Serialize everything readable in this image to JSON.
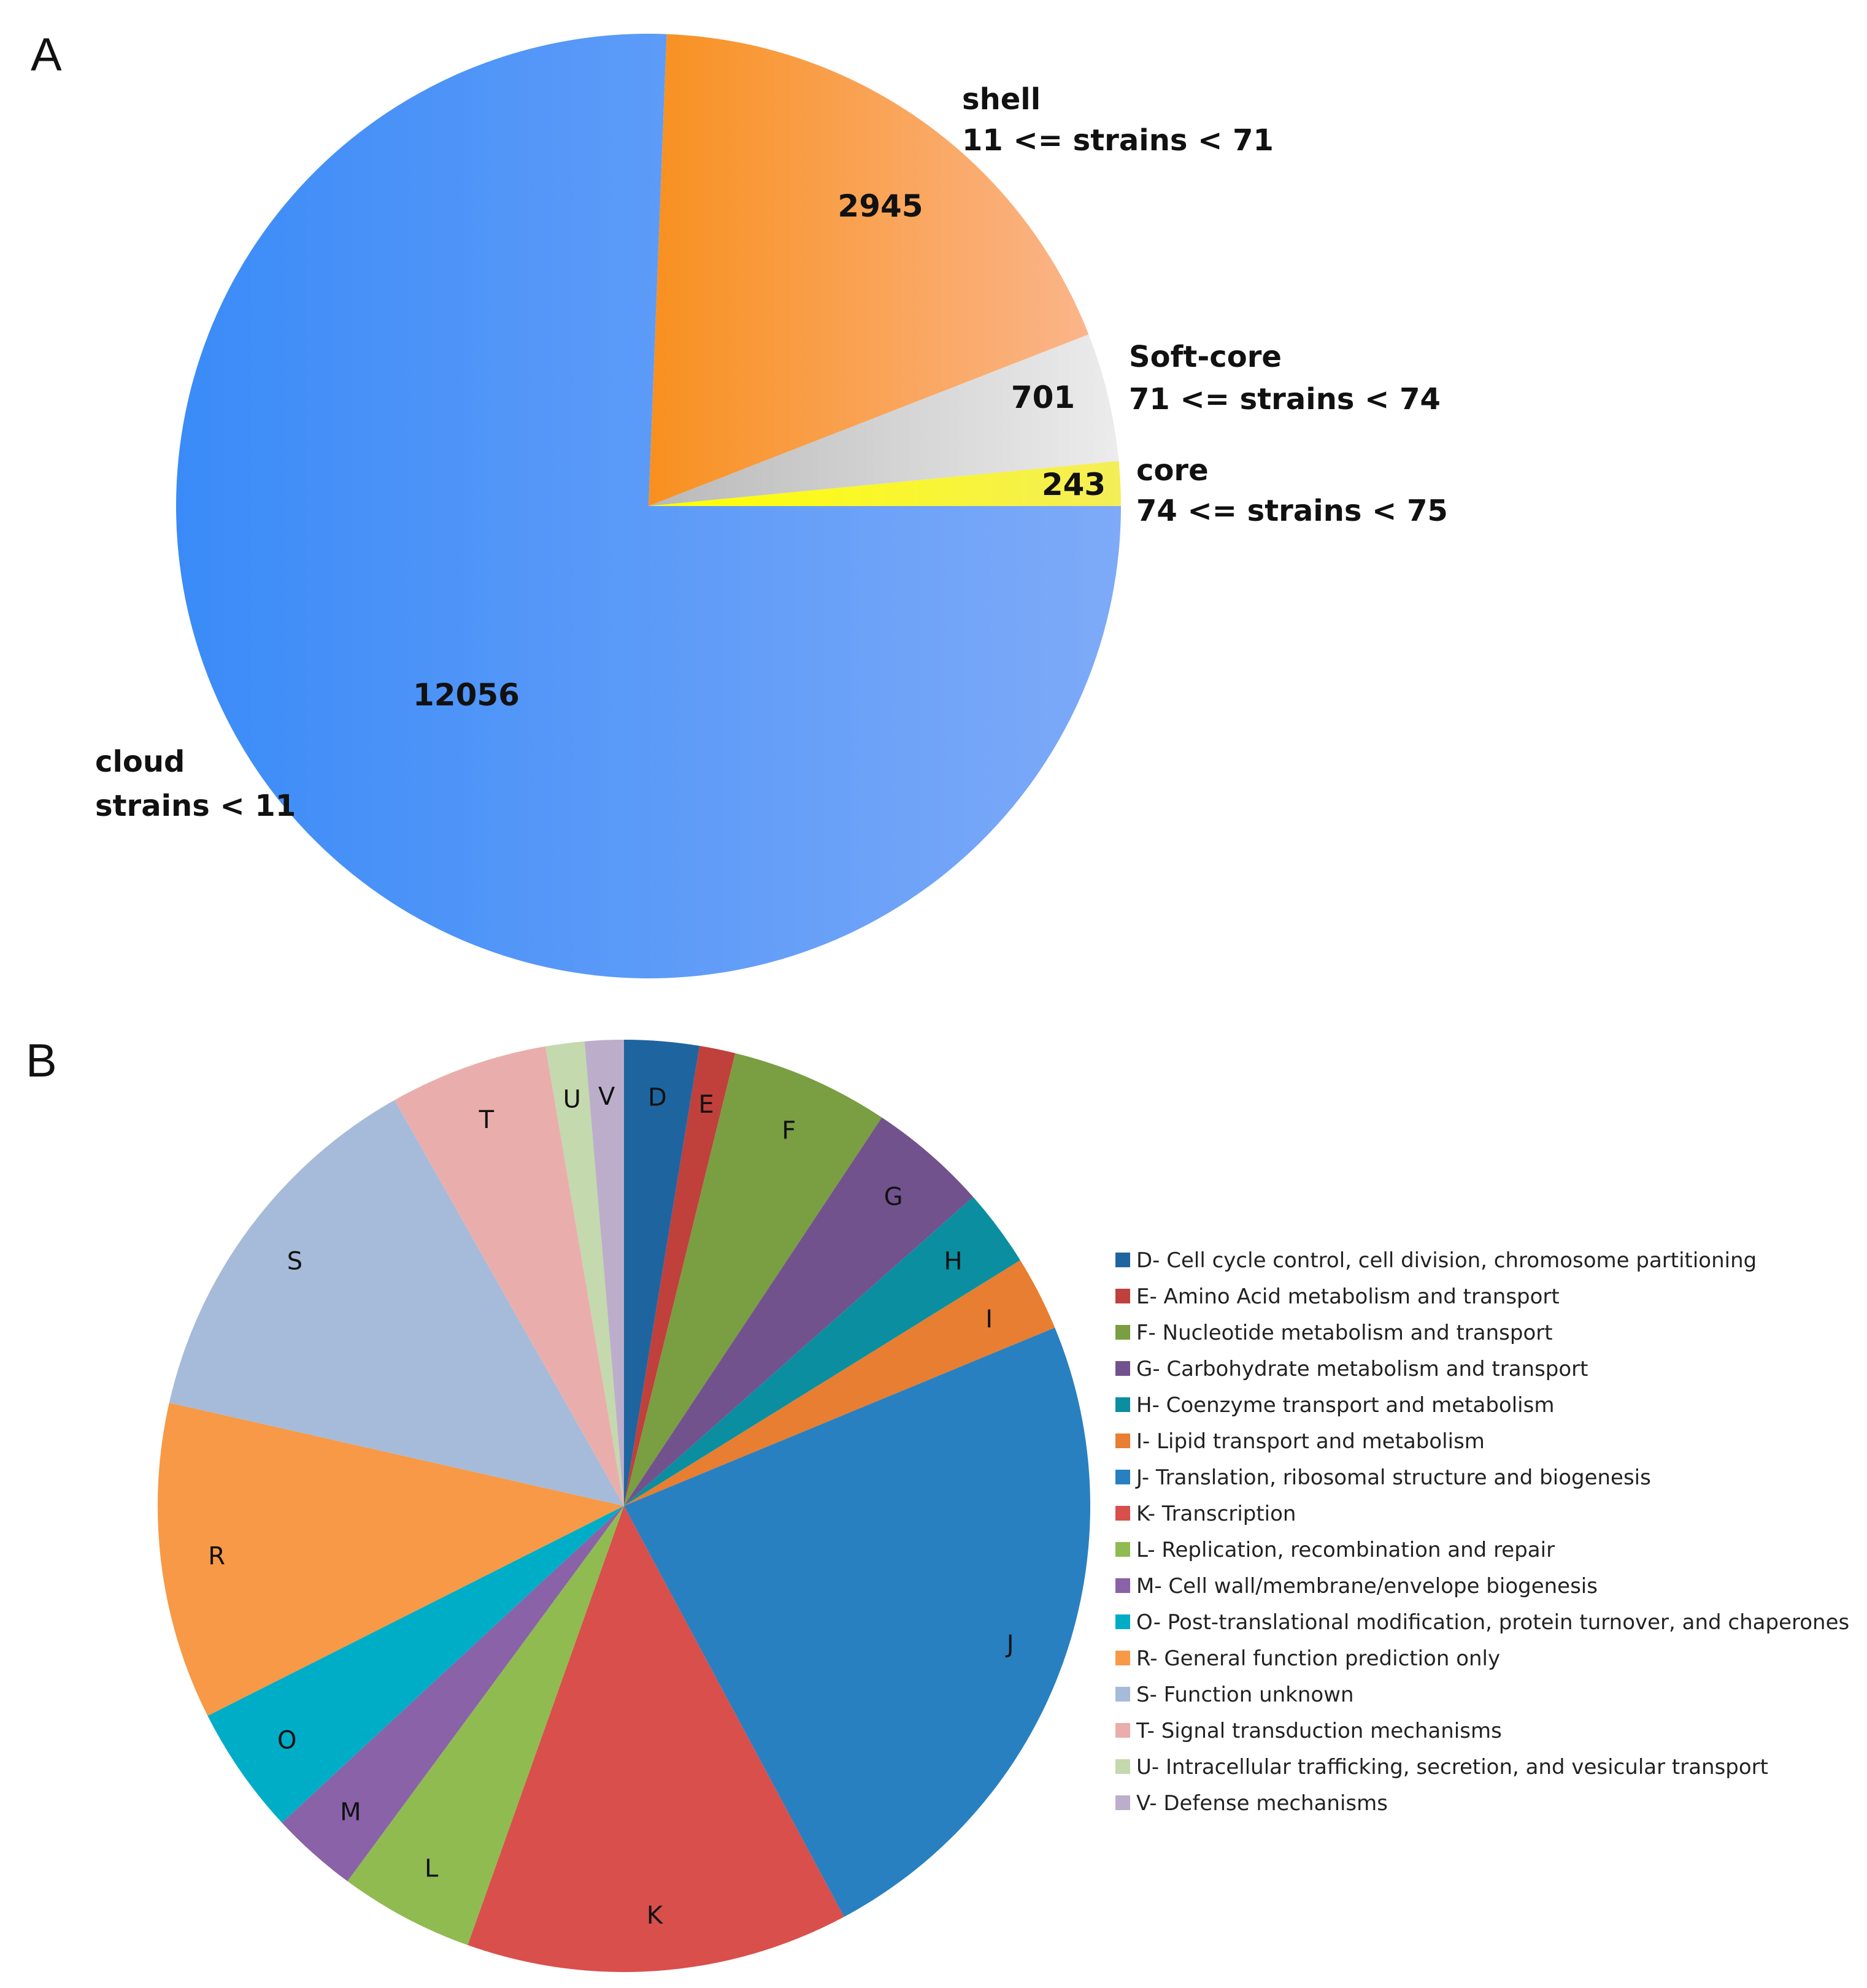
{
  "panels": {
    "a": {
      "letter": "A"
    },
    "b": {
      "letter": "B"
    }
  },
  "chart_data": [
    {
      "type": "pie",
      "title": "",
      "slices": [
        {
          "name": "cloud",
          "range": "strains < 11",
          "value": 12056,
          "value_label": "12056",
          "color": "#3f8ff8",
          "color_end": "#7aaaf8"
        },
        {
          "name": "shell",
          "range": "11 <= strains < 71",
          "value": 2945,
          "value_label": "2945",
          "color": "#f8942a",
          "color_end": "#fbb484"
        },
        {
          "name": "Soft-core",
          "range": "71 <=  strains < 74",
          "value": 701,
          "value_label": "701",
          "color": "#cfcfcf",
          "color_end": "#e6e6e6"
        },
        {
          "name": "core",
          "range": "74 <=  strains < 75",
          "value": 243,
          "value_label": "243",
          "color": "#ffff00",
          "color_end": "#f8f060"
        }
      ]
    },
    {
      "type": "pie",
      "title": "",
      "legend_position": "right",
      "slices": [
        {
          "letter": "D",
          "label": "D- Cell cycle control, cell division, chromosome partitioning",
          "value": 2.5,
          "color": "#1e65a0"
        },
        {
          "letter": "E",
          "label": "E- Amino Acid metabolism and transport",
          "value": 1.2,
          "color": "#c0403c"
        },
        {
          "letter": "F",
          "label": "F- Nucleotide metabolism and transport",
          "value": 5.3,
          "color": "#7a9e42"
        },
        {
          "letter": "G",
          "label": "G- Carbohydrate metabolism and transport",
          "value": 4.0,
          "color": "#72528d"
        },
        {
          "letter": "H",
          "label": "H- Coenzyme transport and metabolism",
          "value": 2.6,
          "color": "#0b8fa0"
        },
        {
          "letter": "I",
          "label": "I- Lipid transport and metabolism",
          "value": 2.5,
          "color": "#e77e31"
        },
        {
          "letter": "J",
          "label": "J- Translation, ribosomal structure and biogenesis",
          "value": 22.6,
          "color": "#2880c0"
        },
        {
          "letter": "K",
          "label": "K- Transcription",
          "value": 12.8,
          "color": "#d94f4c"
        },
        {
          "letter": "L",
          "label": "L- Replication, recombination and repair",
          "value": 4.5,
          "color": "#8fbb51"
        },
        {
          "letter": "M",
          "label": "M- Cell wall/membrane/envelope biogenesis",
          "value": 2.9,
          "color": "#8a62a8"
        },
        {
          "letter": "O",
          "label": "O- Post-translational modification, protein turnover, and chaperones",
          "value": 4.3,
          "color": "#00adc6"
        },
        {
          "letter": "R",
          "label": "R- General function prediction only",
          "value": 10.6,
          "color": "#f79946"
        },
        {
          "letter": "S",
          "label": "S- Function unknown",
          "value": 12.8,
          "color": "#a6bbd9"
        },
        {
          "letter": "T",
          "label": "T- Signal transduction mechanisms",
          "value": 5.3,
          "color": "#e9aeac"
        },
        {
          "letter": "U",
          "label": "U- Intracellular trafficking, secretion, and vesicular transport",
          "value": 1.3,
          "color": "#c4d9ad"
        },
        {
          "letter": "V",
          "label": "V- Defense mechanisms",
          "value": 1.3,
          "color": "#bcaecb"
        }
      ]
    }
  ]
}
